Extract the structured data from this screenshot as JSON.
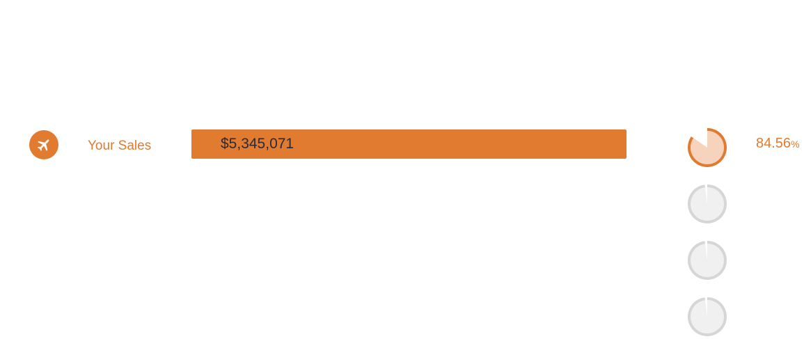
{
  "chart_data": {
    "type": "bar",
    "categories": [
      "Your Sales"
    ],
    "values": [
      5345071
    ],
    "value_label": "$5,345,071",
    "percent": 84.56,
    "percent_label": "84.56",
    "percent_symbol": "%",
    "extra_pies": [
      {
        "percent": 2
      },
      {
        "percent": 2
      },
      {
        "percent": 2
      }
    ]
  },
  "row": {
    "label": "Your Sales",
    "icon": "airplane-icon"
  },
  "colors": {
    "accent": "#e07b30",
    "accent_light": "#f6d3bd",
    "inactive_ring": "#d6d6d6",
    "inactive_fill": "#f0f0f0"
  }
}
